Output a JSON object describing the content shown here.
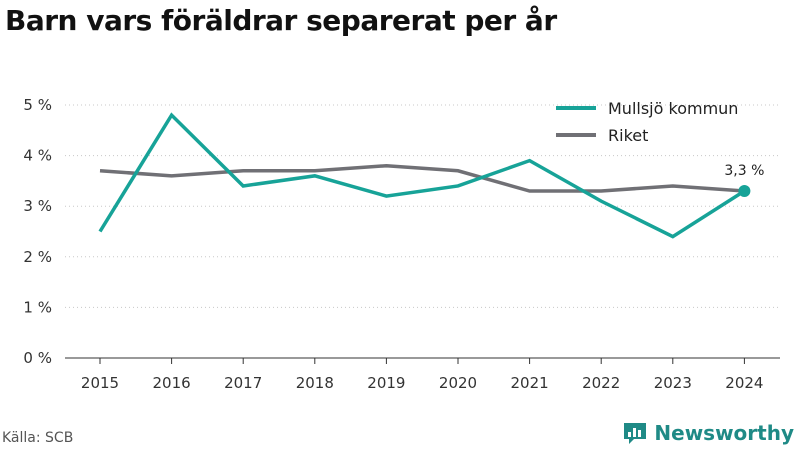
{
  "chart_data": {
    "type": "line",
    "title": "Barn vars föräldrar separerat per år",
    "x": [
      "2015",
      "2016",
      "2017",
      "2018",
      "2019",
      "2020",
      "2021",
      "2022",
      "2023",
      "2024"
    ],
    "series": [
      {
        "name": "Mullsjö kommun",
        "color": "#17a398",
        "values": [
          2.5,
          4.8,
          3.4,
          3.6,
          3.2,
          3.4,
          3.9,
          3.1,
          2.4,
          3.3
        ]
      },
      {
        "name": "Riket",
        "color": "#707075",
        "values": [
          3.7,
          3.6,
          3.7,
          3.7,
          3.8,
          3.7,
          3.3,
          3.3,
          3.4,
          3.3
        ]
      }
    ],
    "ylim": [
      0,
      5
    ],
    "yticks": [
      0,
      1,
      2,
      3,
      4,
      5
    ],
    "ytick_labels": [
      "0 %",
      "1 %",
      "2 %",
      "3 %",
      "4 %",
      "5 %"
    ],
    "grid": "horizontal dotted",
    "legend_position": "top-right",
    "end_label": "3,3 %"
  },
  "source": "Källa: SCB",
  "brand": "Newsworthy",
  "brand_icon": "newsworthy-logo-icon",
  "colors": {
    "accent": "#17a398",
    "secondary": "#707075",
    "brand": "#1f8a86"
  }
}
